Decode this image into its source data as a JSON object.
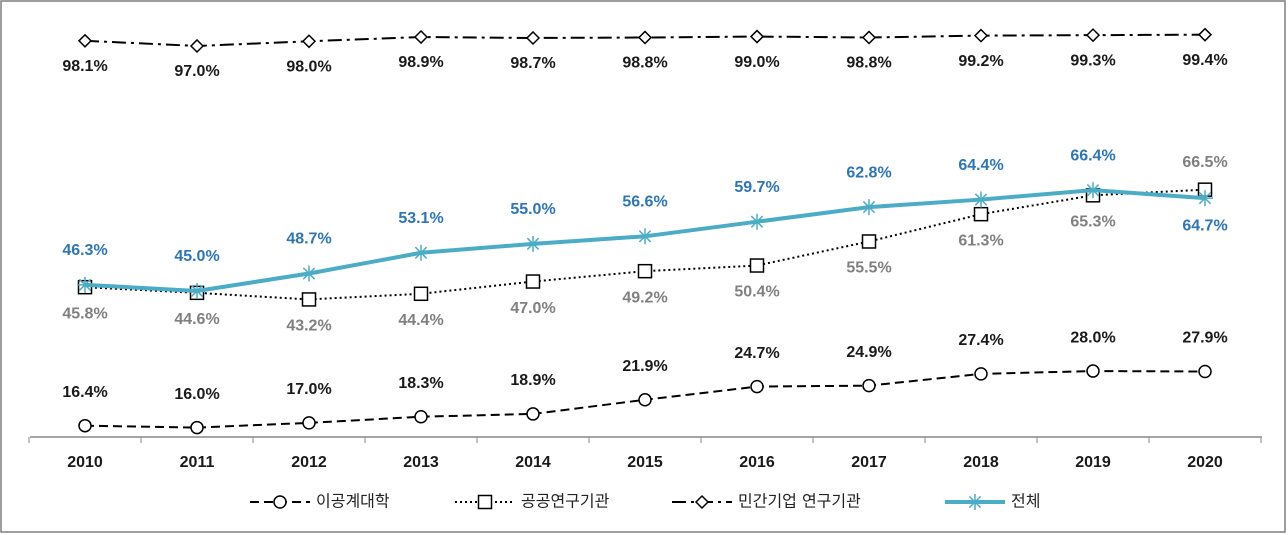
{
  "chart_data": {
    "type": "line",
    "categories": [
      "2010",
      "2011",
      "2012",
      "2013",
      "2014",
      "2015",
      "2016",
      "2017",
      "2018",
      "2019",
      "2020"
    ],
    "ylim": [
      14,
      104
    ],
    "series": [
      {
        "name": "이공계대학",
        "color": "#000000",
        "marker": "circle",
        "dash": "dashed",
        "label_color": "#1a1a1a",
        "values": [
          16.4,
          16.0,
          17.0,
          18.3,
          18.9,
          21.9,
          24.7,
          24.9,
          27.4,
          28.0,
          27.9
        ],
        "value_labels": [
          "16.4%",
          "16.0%",
          "17.0%",
          "18.3%",
          "18.9%",
          "21.9%",
          "24.7%",
          "24.9%",
          "27.4%",
          "28.0%",
          "27.9%"
        ]
      },
      {
        "name": "공공연구기관",
        "color": "#000000",
        "marker": "square",
        "dash": "dotted",
        "label_color": "#808080",
        "values": [
          45.8,
          44.6,
          43.2,
          44.4,
          47.0,
          49.2,
          50.4,
          55.5,
          61.3,
          65.3,
          66.5
        ],
        "value_labels": [
          "45.8%",
          "44.6%",
          "43.2%",
          "44.4%",
          "47.0%",
          "49.2%",
          "50.4%",
          "55.5%",
          "61.3%",
          "65.3%",
          "66.5%"
        ]
      },
      {
        "name": "민간기업 연구기관",
        "color": "#000000",
        "marker": "diamond",
        "dash": "dashdot",
        "label_color": "#1a1a1a",
        "values": [
          98.1,
          97.0,
          98.0,
          98.9,
          98.7,
          98.8,
          99.0,
          98.8,
          99.2,
          99.3,
          99.4
        ],
        "value_labels": [
          "98.1%",
          "97.0%",
          "98.0%",
          "98.9%",
          "98.7%",
          "98.8%",
          "99.0%",
          "98.8%",
          "99.2%",
          "99.3%",
          "99.4%"
        ]
      },
      {
        "name": "전체",
        "color": "#4bacc6",
        "marker": "asterisk",
        "dash": "solid",
        "label_color": "#2e75b6",
        "values": [
          46.3,
          45.0,
          48.7,
          53.1,
          55.0,
          56.6,
          59.7,
          62.8,
          64.4,
          66.4,
          64.7
        ],
        "value_labels": [
          "46.3%",
          "45.0%",
          "48.7%",
          "53.1%",
          "55.0%",
          "56.6%",
          "59.7%",
          "62.8%",
          "64.4%",
          "66.4%",
          "64.7%"
        ]
      }
    ]
  }
}
